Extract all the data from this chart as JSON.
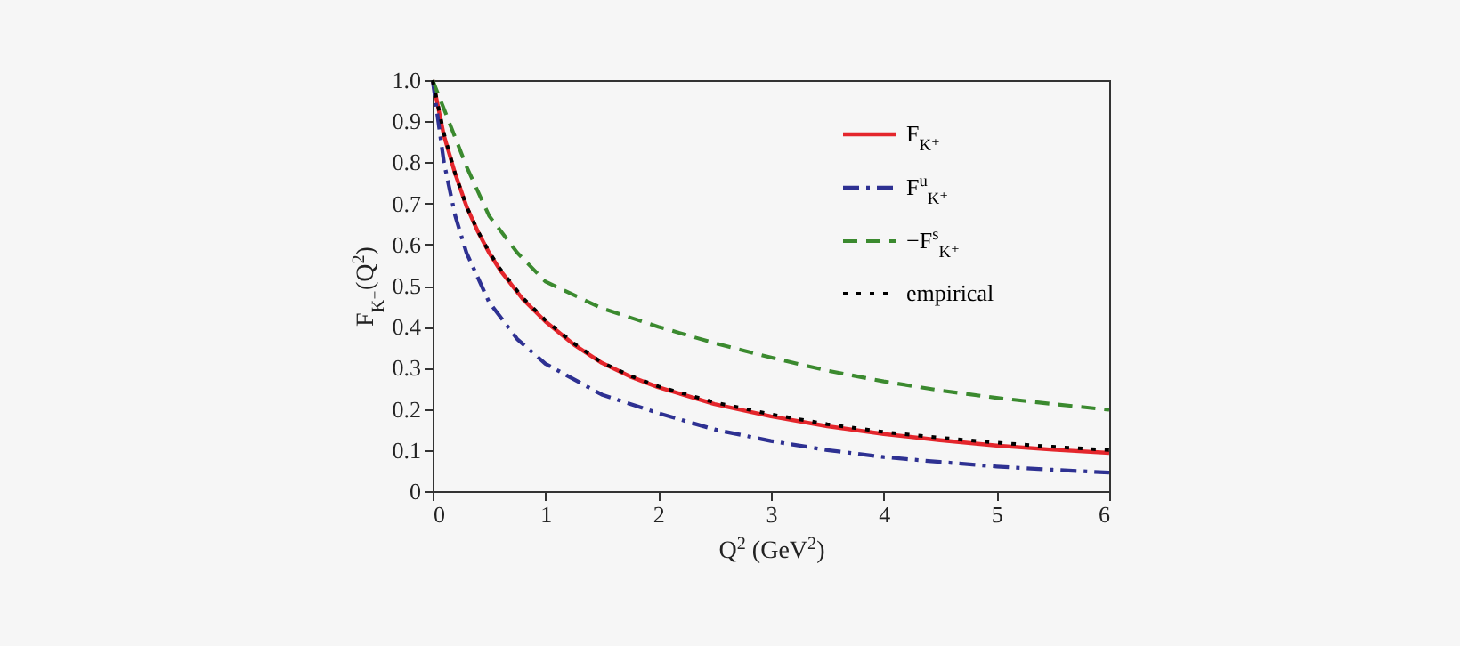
{
  "chart_data": {
    "type": "line",
    "xlabel": "Q$^{2}$  (GeV$^{2}$)",
    "ylabel": "F$_{K⁺}$(Q$^{2}$)",
    "xlim": [
      0,
      6
    ],
    "xticks": [
      0,
      1,
      2,
      3,
      4,
      5,
      6
    ],
    "ylim": [
      0,
      1
    ],
    "yticks": [
      {
        "value": 0,
        "label": "0"
      },
      0.1,
      0.2,
      0.3,
      0.4,
      0.5,
      0.6,
      0.7,
      0.8,
      0.9,
      {
        "value": 1,
        "label": "1.0"
      }
    ],
    "grid": false,
    "legend": "top right",
    "series": [
      {
        "name": "F$_{K⁺}$",
        "color": "#e4262c",
        "line_style": "solid",
        "x": [
          0,
          0.1,
          0.2,
          0.3,
          0.4,
          0.5,
          0.6,
          0.8,
          1,
          1.25,
          1.5,
          1.75,
          2,
          2.5,
          3,
          3.5,
          4,
          4.5,
          5,
          5.5,
          6
        ],
        "values": [
          1,
          0.865,
          0.772,
          0.693,
          0.632,
          0.58,
          0.537,
          0.467,
          0.413,
          0.357,
          0.312,
          0.279,
          0.253,
          0.212,
          0.182,
          0.158,
          0.139,
          0.124,
          0.111,
          0.101,
          0.093
        ]
      },
      {
        "name": "F$^{u}$$_{K⁺}$",
        "color": "#2e3192",
        "line_style": "dashdot",
        "x": [
          0,
          0.1,
          0.2,
          0.3,
          0.5,
          0.75,
          1,
          1.5,
          2,
          2.5,
          3,
          3.5,
          4,
          4.5,
          5,
          5.5,
          6
        ],
        "values": [
          1,
          0.8,
          0.67,
          0.58,
          0.46,
          0.37,
          0.31,
          0.235,
          0.19,
          0.15,
          0.122,
          0.1,
          0.083,
          0.071,
          0.06,
          0.052,
          0.045
        ]
      },
      {
        "name": "−F$^{s}$$_{K⁺}$",
        "color": "#3b8a2f",
        "line_style": "dashed",
        "x": [
          0,
          0.1,
          0.2,
          0.3,
          0.5,
          0.75,
          1,
          1.5,
          2,
          2.5,
          3,
          3.5,
          4,
          4.5,
          5,
          5.5,
          6
        ],
        "values": [
          1,
          0.93,
          0.86,
          0.79,
          0.67,
          0.58,
          0.51,
          0.445,
          0.4,
          0.36,
          0.325,
          0.293,
          0.267,
          0.245,
          0.227,
          0.212,
          0.198
        ]
      },
      {
        "name": "empirical",
        "color": "#000000",
        "line_style": "dotted",
        "x": [
          0,
          0.1,
          0.2,
          0.3,
          0.4,
          0.5,
          0.6,
          0.8,
          1,
          1.25,
          1.5,
          1.75,
          2,
          2.5,
          3,
          3.5,
          4,
          4.5,
          5,
          5.5,
          6
        ],
        "values": [
          1,
          0.87,
          0.772,
          0.693,
          0.633,
          0.582,
          0.54,
          0.47,
          0.416,
          0.36,
          0.313,
          0.281,
          0.255,
          0.216,
          0.187,
          0.163,
          0.144,
          0.13,
          0.118,
          0.108,
          0.1
        ]
      }
    ]
  }
}
